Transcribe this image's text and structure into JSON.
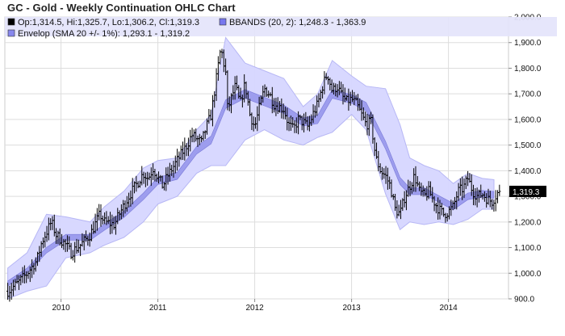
{
  "title": "GC - Gold - Weekly Continuation OHLC Chart",
  "legend": [
    {
      "name": "ohlc",
      "text": "Op:1,314.5, Hi:1,325.7, Lo:1,306.2, Cl:1,319.3",
      "color": "#000000"
    },
    {
      "name": "bbands",
      "text": "BBANDS (20, 2): 1,248.3 - 1,363.9",
      "color": "#7777ee"
    },
    {
      "name": "envelope",
      "text": "Envelop (SMA 20 +/- 1%): 1,293.1 - 1,319.2",
      "color": "#8888ee"
    }
  ],
  "colors": {
    "bar": "#000000",
    "bbands_fill": "#d6d6ff",
    "bbands_edge": "#b7b7f5",
    "envelope_fill": "#8a8ae8",
    "grid": "#dddddd",
    "legend_bg": "#e4e4fb",
    "price_tag_bg": "#000000",
    "price_tag_text": "#ffffff"
  },
  "chart_data": {
    "type": "ohlc",
    "title": "GC - Gold - Weekly Continuation OHLC Chart",
    "ylim": [
      900,
      2000
    ],
    "y_ticks": [
      "900.0",
      "1,000.0",
      "1,100.0",
      "1,200.0",
      "1,300.0",
      "1,400.0",
      "1,500.0",
      "1,600.0",
      "1,700.0",
      "1,800.0",
      "1,900.0",
      "2,000.0"
    ],
    "x_range": [
      2009.42,
      2014.62
    ],
    "x_ticks": [
      {
        "year": 2010,
        "label": "2010"
      },
      {
        "year": 2011,
        "label": "2011"
      },
      {
        "year": 2012,
        "label": "2012"
      },
      {
        "year": 2013,
        "label": "2013"
      },
      {
        "year": 2014,
        "label": "2014"
      }
    ],
    "grid": true,
    "last_price_label": "1,319.3",
    "last_price": 1319.3,
    "price_path": [
      [
        2009.45,
        930
      ],
      [
        2009.55,
        960
      ],
      [
        2009.65,
        1000
      ],
      [
        2009.75,
        1050
      ],
      [
        2009.8,
        1120
      ],
      [
        2009.9,
        1200
      ],
      [
        2009.95,
        1150
      ],
      [
        2010.05,
        1110
      ],
      [
        2010.1,
        1080
      ],
      [
        2010.2,
        1110
      ],
      [
        2010.3,
        1150
      ],
      [
        2010.4,
        1230
      ],
      [
        2010.45,
        1200
      ],
      [
        2010.55,
        1190
      ],
      [
        2010.6,
        1230
      ],
      [
        2010.7,
        1300
      ],
      [
        2010.8,
        1360
      ],
      [
        2010.85,
        1390
      ],
      [
        2010.9,
        1370
      ],
      [
        2010.95,
        1410
      ],
      [
        2011.05,
        1340
      ],
      [
        2011.1,
        1380
      ],
      [
        2011.2,
        1440
      ],
      [
        2011.3,
        1500
      ],
      [
        2011.35,
        1540
      ],
      [
        2011.45,
        1510
      ],
      [
        2011.5,
        1570
      ],
      [
        2011.55,
        1620
      ],
      [
        2011.6,
        1750
      ],
      [
        2011.65,
        1880
      ],
      [
        2011.7,
        1780
      ],
      [
        2011.72,
        1640
      ],
      [
        2011.8,
        1730
      ],
      [
        2011.85,
        1660
      ],
      [
        2011.9,
        1740
      ],
      [
        2011.95,
        1620
      ],
      [
        2012.0,
        1570
      ],
      [
        2012.05,
        1650
      ],
      [
        2012.1,
        1720
      ],
      [
        2012.15,
        1700
      ],
      [
        2012.2,
        1660
      ],
      [
        2012.3,
        1640
      ],
      [
        2012.35,
        1580
      ],
      [
        2012.4,
        1560
      ],
      [
        2012.45,
        1600
      ],
      [
        2012.5,
        1590
      ],
      [
        2012.55,
        1570
      ],
      [
        2012.6,
        1620
      ],
      [
        2012.65,
        1660
      ],
      [
        2012.7,
        1730
      ],
      [
        2012.75,
        1780
      ],
      [
        2012.8,
        1710
      ],
      [
        2012.85,
        1730
      ],
      [
        2012.9,
        1690
      ],
      [
        2012.95,
        1670
      ],
      [
        2013.0,
        1680
      ],
      [
        2013.05,
        1660
      ],
      [
        2013.1,
        1620
      ],
      [
        2013.15,
        1580
      ],
      [
        2013.2,
        1590
      ],
      [
        2013.25,
        1450
      ],
      [
        2013.3,
        1400
      ],
      [
        2013.35,
        1380
      ],
      [
        2013.4,
        1340
      ],
      [
        2013.45,
        1250
      ],
      [
        2013.5,
        1230
      ],
      [
        2013.55,
        1300
      ],
      [
        2013.6,
        1340
      ],
      [
        2013.65,
        1380
      ],
      [
        2013.7,
        1320
      ],
      [
        2013.75,
        1300
      ],
      [
        2013.8,
        1320
      ],
      [
        2013.85,
        1280
      ],
      [
        2013.9,
        1250
      ],
      [
        2013.95,
        1230
      ],
      [
        2014.0,
        1240
      ],
      [
        2014.05,
        1260
      ],
      [
        2014.1,
        1320
      ],
      [
        2014.15,
        1330
      ],
      [
        2014.2,
        1370
      ],
      [
        2014.25,
        1320
      ],
      [
        2014.3,
        1300
      ],
      [
        2014.35,
        1310
      ],
      [
        2014.4,
        1290
      ],
      [
        2014.45,
        1280
      ],
      [
        2014.5,
        1310
      ],
      [
        2014.53,
        1319
      ]
    ],
    "bbands_upper": [
      [
        2009.45,
        1020
      ],
      [
        2009.65,
        1080
      ],
      [
        2009.85,
        1230
      ],
      [
        2010.05,
        1220
      ],
      [
        2010.3,
        1200
      ],
      [
        2010.45,
        1260
      ],
      [
        2010.65,
        1320
      ],
      [
        2010.85,
        1410
      ],
      [
        2011.0,
        1440
      ],
      [
        2011.2,
        1450
      ],
      [
        2011.4,
        1560
      ],
      [
        2011.55,
        1620
      ],
      [
        2011.7,
        1920
      ],
      [
        2011.9,
        1820
      ],
      [
        2012.1,
        1790
      ],
      [
        2012.3,
        1760
      ],
      [
        2012.5,
        1650
      ],
      [
        2012.65,
        1700
      ],
      [
        2012.8,
        1830
      ],
      [
        2013.0,
        1770
      ],
      [
        2013.15,
        1730
      ],
      [
        2013.35,
        1720
      ],
      [
        2013.5,
        1580
      ],
      [
        2013.6,
        1450
      ],
      [
        2013.75,
        1420
      ],
      [
        2013.9,
        1400
      ],
      [
        2014.05,
        1350
      ],
      [
        2014.2,
        1390
      ],
      [
        2014.35,
        1370
      ],
      [
        2014.47,
        1365
      ]
    ],
    "bbands_lower": [
      [
        2009.45,
        900
      ],
      [
        2009.65,
        930
      ],
      [
        2009.85,
        950
      ],
      [
        2010.05,
        1060
      ],
      [
        2010.3,
        1080
      ],
      [
        2010.45,
        1110
      ],
      [
        2010.65,
        1140
      ],
      [
        2010.85,
        1200
      ],
      [
        2011.0,
        1270
      ],
      [
        2011.2,
        1300
      ],
      [
        2011.4,
        1390
      ],
      [
        2011.55,
        1420
      ],
      [
        2011.7,
        1420
      ],
      [
        2011.9,
        1520
      ],
      [
        2012.1,
        1560
      ],
      [
        2012.3,
        1520
      ],
      [
        2012.5,
        1500
      ],
      [
        2012.65,
        1530
      ],
      [
        2012.8,
        1550
      ],
      [
        2013.0,
        1620
      ],
      [
        2013.15,
        1560
      ],
      [
        2013.35,
        1310
      ],
      [
        2013.5,
        1170
      ],
      [
        2013.6,
        1200
      ],
      [
        2013.75,
        1190
      ],
      [
        2013.9,
        1200
      ],
      [
        2014.05,
        1190
      ],
      [
        2014.2,
        1210
      ],
      [
        2014.35,
        1250
      ],
      [
        2014.47,
        1250
      ]
    ],
    "envelope_mid": [
      [
        2009.45,
        960
      ],
      [
        2009.65,
        1010
      ],
      [
        2009.85,
        1090
      ],
      [
        2010.05,
        1140
      ],
      [
        2010.3,
        1140
      ],
      [
        2010.45,
        1180
      ],
      [
        2010.65,
        1230
      ],
      [
        2010.85,
        1300
      ],
      [
        2011.0,
        1360
      ],
      [
        2011.2,
        1380
      ],
      [
        2011.4,
        1480
      ],
      [
        2011.55,
        1520
      ],
      [
        2011.7,
        1660
      ],
      [
        2011.9,
        1700
      ],
      [
        2012.1,
        1670
      ],
      [
        2012.3,
        1640
      ],
      [
        2012.5,
        1590
      ],
      [
        2012.65,
        1600
      ],
      [
        2012.8,
        1700
      ],
      [
        2013.0,
        1680
      ],
      [
        2013.15,
        1650
      ],
      [
        2013.35,
        1500
      ],
      [
        2013.5,
        1360
      ],
      [
        2013.6,
        1320
      ],
      [
        2013.75,
        1320
      ],
      [
        2013.9,
        1290
      ],
      [
        2014.05,
        1260
      ],
      [
        2014.2,
        1300
      ],
      [
        2014.35,
        1310
      ],
      [
        2014.47,
        1306
      ]
    ],
    "envelope_pct": 1
  }
}
